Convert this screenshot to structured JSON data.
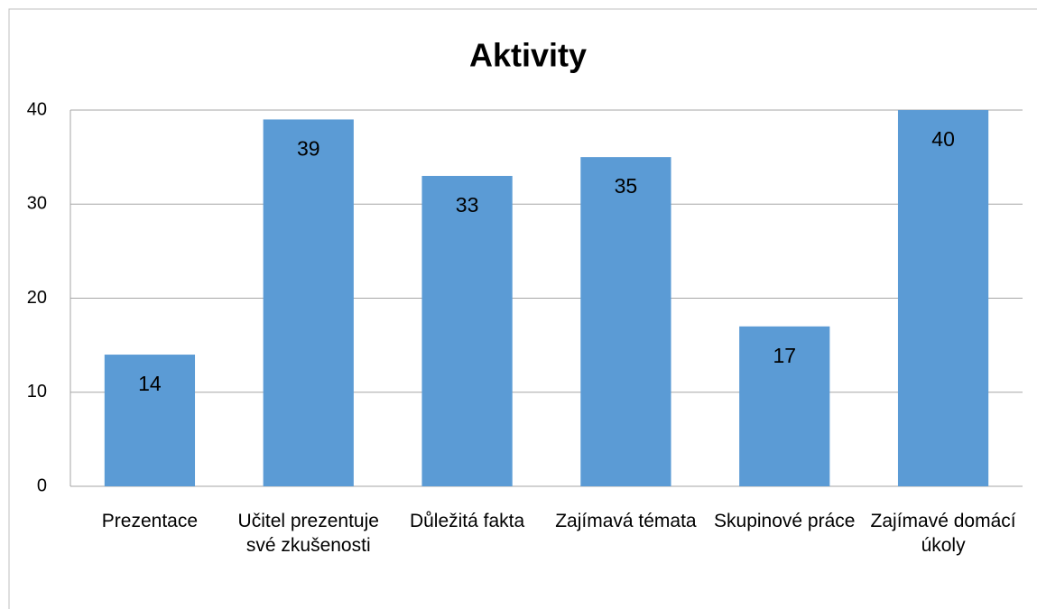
{
  "chart_data": {
    "type": "bar",
    "title": "Aktivity",
    "categories": [
      "Prezentace",
      "Učitel prezentuje své zkušenosti",
      "Důležitá fakta",
      "Zajímavá témata",
      "Skupinové práce",
      "Zajímavé domácí úkoly"
    ],
    "values": [
      14,
      39,
      33,
      35,
      17,
      40
    ],
    "color": "#5b9bd5",
    "ylim": [
      0,
      40
    ],
    "yticks": [
      0,
      10,
      20,
      30,
      40
    ],
    "grid": true
  }
}
